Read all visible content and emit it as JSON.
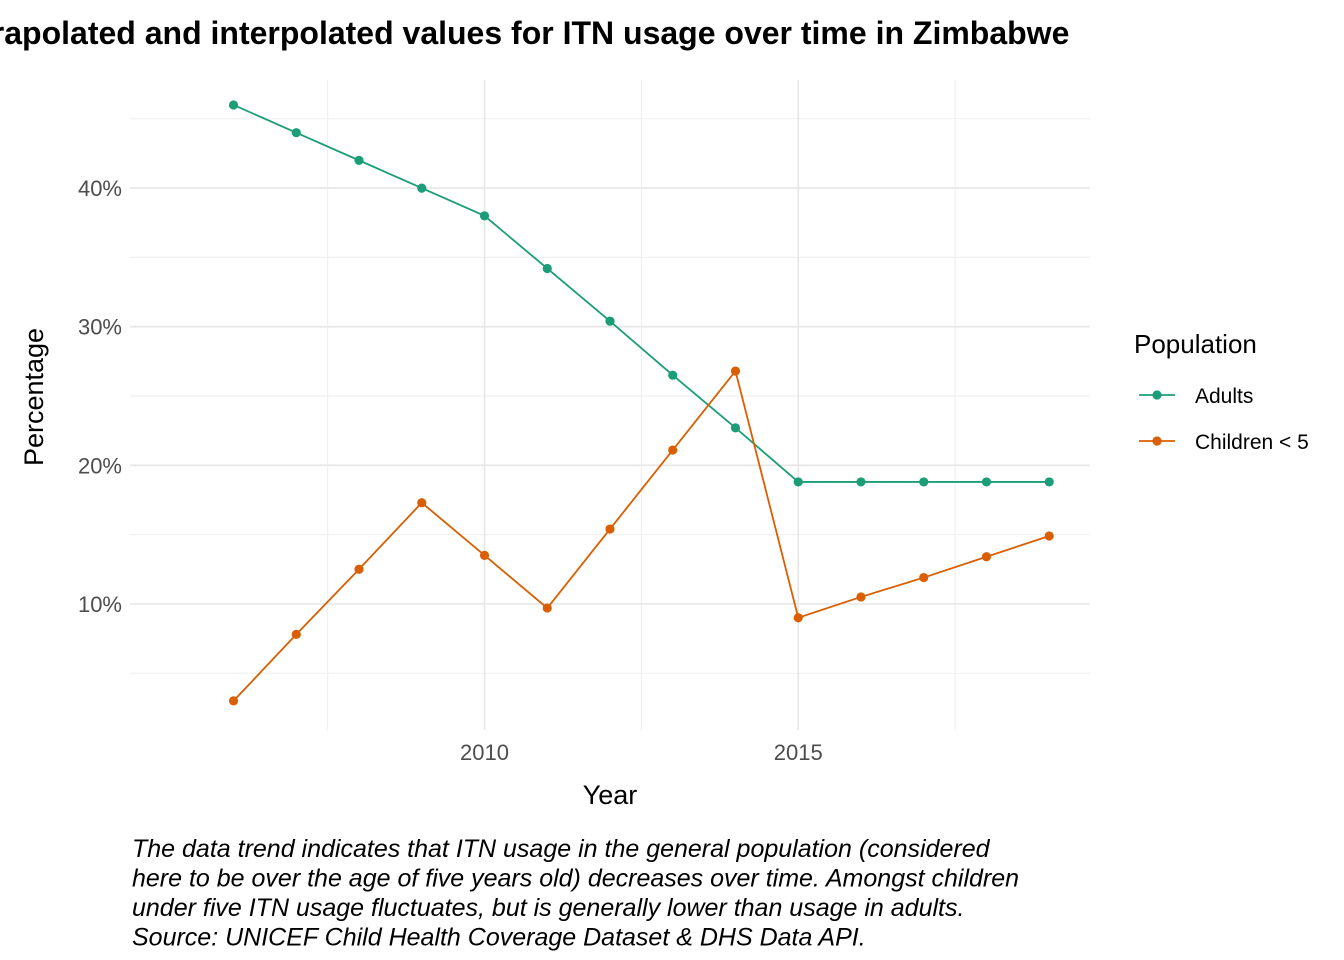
{
  "chart_data": {
    "type": "line",
    "title": "Extrapolated and interpolated values for ITN usage over time in Zimbabwe",
    "xlabel": "Year",
    "ylabel": "Percentage",
    "x": [
      2006,
      2007,
      2008,
      2009,
      2010,
      2011,
      2012,
      2013,
      2014,
      2015,
      2016,
      2017,
      2018,
      2019
    ],
    "x_ticks": [
      2010,
      2015
    ],
    "y_ticks": [
      10,
      20,
      30,
      40
    ],
    "y_tick_labels": [
      "10%",
      "20%",
      "30%",
      "40%"
    ],
    "xlim": [
      2004.35,
      2019.65
    ],
    "ylim": [
      0.9,
      47.8
    ],
    "grid": true,
    "legend_title": "Population",
    "legend_position": "right",
    "series": [
      {
        "name": "Adults",
        "color": "#1b9e77",
        "values": [
          46.0,
          44.0,
          42.0,
          40.0,
          38.0,
          34.2,
          30.4,
          26.5,
          22.7,
          18.8,
          18.8,
          18.8,
          18.8,
          18.8
        ]
      },
      {
        "name": "Children < 5",
        "color": "#d95f02",
        "values": [
          3.0,
          7.8,
          12.5,
          17.3,
          13.5,
          9.7,
          15.4,
          21.1,
          26.8,
          9.0,
          10.5,
          11.9,
          13.4,
          14.9
        ]
      }
    ],
    "caption": [
      "The data trend indicates that ITN usage in the general population (considered",
      "here to be over the age of five years old) decreases over time. Amongst children",
      "under five ITN usage fluctuates, but is generally lower than usage in adults.",
      "Source: UNICEF Child Health Coverage Dataset & DHS Data API."
    ]
  }
}
